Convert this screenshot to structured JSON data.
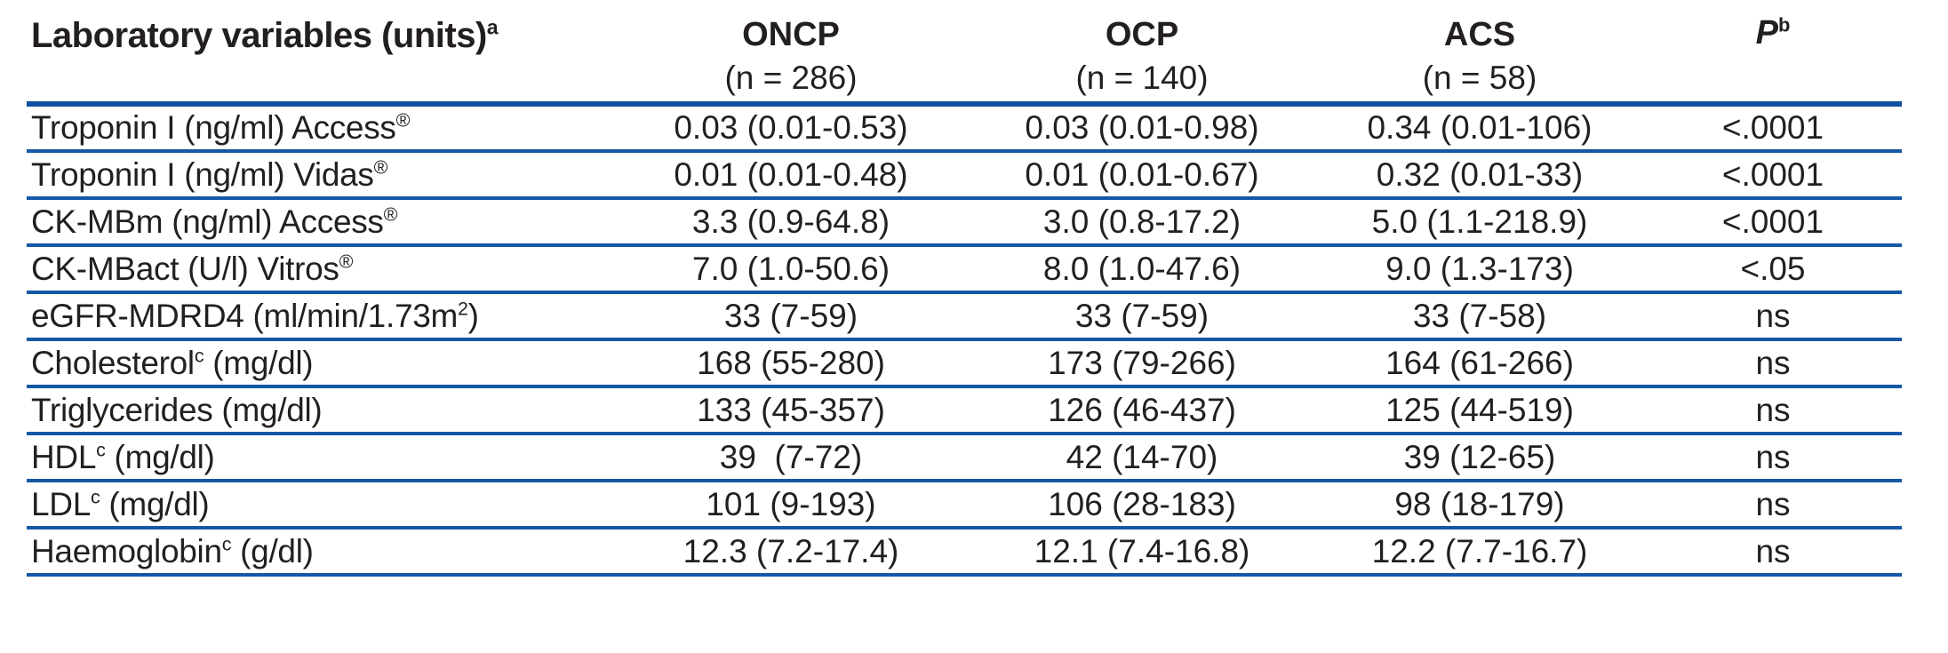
{
  "colors": {
    "rule_blue": "#1558a6",
    "rule_blue_dark": "#0f4f9e",
    "text": "#231f20",
    "background": "#ffffff"
  },
  "table": {
    "columns": [
      {
        "header_parts": [
          {
            "t": "Laboratory variables (units)"
          },
          {
            "s": "a"
          }
        ]
      },
      {
        "name": "ONCP",
        "n": "(n = 286)"
      },
      {
        "name": "OCP",
        "n": "(n = 140)"
      },
      {
        "name": "ACS",
        "n": "(n = 58)"
      },
      {
        "header_parts": [
          {
            "t": "P"
          },
          {
            "s": "b"
          }
        ]
      }
    ],
    "rows": [
      {
        "label_parts": [
          {
            "t": "Troponin I (ng/ml) Access"
          },
          {
            "s": "®"
          }
        ],
        "values": [
          "0.03 (0.01-0.53)",
          "0.03 (0.01-0.98)",
          "0.34 (0.01-106)",
          "<.0001"
        ]
      },
      {
        "label_parts": [
          {
            "t": "Troponin I (ng/ml) Vidas"
          },
          {
            "s": "®"
          }
        ],
        "values": [
          "0.01 (0.01-0.48)",
          "0.01 (0.01-0.67)",
          "0.32 (0.01-33)",
          "<.0001"
        ]
      },
      {
        "label_parts": [
          {
            "t": "CK-MBm (ng/ml) Access"
          },
          {
            "s": "®"
          }
        ],
        "values": [
          "3.3 (0.9-64.8)",
          "3.0 (0.8-17.2)",
          "5.0 (1.1-218.9)",
          "<.0001"
        ]
      },
      {
        "label_parts": [
          {
            "t": "CK-MBact (U/l) Vitros"
          },
          {
            "s": "®"
          }
        ],
        "values": [
          "7.0 (1.0-50.6)",
          "8.0 (1.0-47.6)",
          "9.0 (1.3-173)",
          "<.05"
        ]
      },
      {
        "label_parts": [
          {
            "t": "eGFR-MDRD4 (ml/min/1.73m"
          },
          {
            "s": "2"
          },
          {
            "t": ")"
          }
        ],
        "values": [
          "33 (7-59)",
          "33 (7-59)",
          "33 (7-58)",
          "ns"
        ]
      },
      {
        "label_parts": [
          {
            "t": "Cholesterol"
          },
          {
            "s": "c"
          },
          {
            "t": " (mg/dl)"
          }
        ],
        "values": [
          "168 (55-280)",
          "173 (79-266)",
          "164 (61-266)",
          "ns"
        ]
      },
      {
        "label_parts": [
          {
            "t": "Triglycerides (mg/dl)"
          }
        ],
        "values": [
          "133 (45-357)",
          "126 (46-437)",
          "125 (44-519)",
          "ns"
        ]
      },
      {
        "label_parts": [
          {
            "t": "HDL"
          },
          {
            "s": "c"
          },
          {
            "t": " (mg/dl)"
          }
        ],
        "values": [
          "39  (7-72)",
          "42 (14-70)",
          "39 (12-65)",
          "ns"
        ]
      },
      {
        "label_parts": [
          {
            "t": "LDL"
          },
          {
            "s": "c"
          },
          {
            "t": " (mg/dl)"
          }
        ],
        "values": [
          "101 (9-193)",
          "106 (28-183)",
          "98 (18-179)",
          "ns"
        ]
      },
      {
        "label_parts": [
          {
            "t": "Haemoglobin"
          },
          {
            "s": "c"
          },
          {
            "t": " (g/dl)"
          }
        ],
        "values": [
          "12.3 (7.2-17.4)",
          "12.1 (7.4-16.8)",
          "12.2 (7.7-16.7)",
          "ns"
        ]
      }
    ]
  }
}
